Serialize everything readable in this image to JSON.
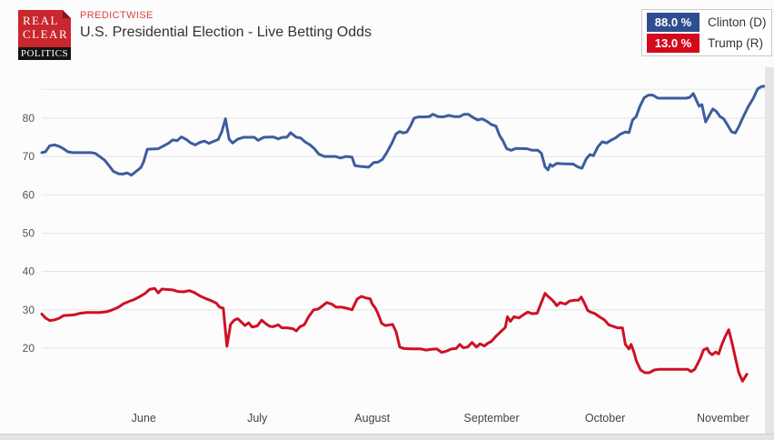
{
  "header": {
    "logo": {
      "line1": "REAL",
      "line2": "CLEAR",
      "line3": "POLITICS",
      "red": "#C9262E",
      "fold": "#7E161C",
      "black": "#141414"
    },
    "source_label": "PREDICTWISE",
    "title": "U.S. Presidential Election - Live Betting Odds"
  },
  "legend": {
    "items": [
      {
        "value": "88.0 %",
        "label": "Clinton (D)",
        "color": "#2F4E8F"
      },
      {
        "value": "13.0 %",
        "label": "Trump (R)",
        "color": "#D40A1C"
      }
    ]
  },
  "chart_data": {
    "type": "line",
    "title": "U.S. Presidential Election - Live Betting Odds",
    "source": "PREDICTWISE",
    "xlabel": "",
    "ylabel": "",
    "grid": true,
    "legend_position": "top-right",
    "ylim": [
      5.3,
      92.3
    ],
    "yticks": [
      20,
      30,
      40,
      50,
      60,
      70,
      80
    ],
    "extra_gridlines": [
      87.5
    ],
    "x_month_labels": [
      {
        "label": "June",
        "pct": 14.1
      },
      {
        "label": "July",
        "pct": 29.8
      },
      {
        "label": "August",
        "pct": 45.7
      },
      {
        "label": "September",
        "pct": 62.2
      },
      {
        "label": "October",
        "pct": 77.9
      },
      {
        "label": "November",
        "pct": 94.2
      }
    ],
    "series": [
      {
        "id": "clinton-line",
        "name": "Clinton (D)",
        "color": "#3E5C9E",
        "current_pct": 88.0,
        "points": [
          [
            0,
            71
          ],
          [
            0.5,
            71.2
          ],
          [
            1.1,
            72.8
          ],
          [
            1.8,
            73
          ],
          [
            2.4,
            72.6
          ],
          [
            3,
            72
          ],
          [
            3.6,
            71.2
          ],
          [
            4.3,
            71
          ],
          [
            6.8,
            71
          ],
          [
            7.4,
            70.8
          ],
          [
            8,
            70
          ],
          [
            8.7,
            69
          ],
          [
            9.3,
            67.6
          ],
          [
            9.9,
            66.1
          ],
          [
            10.6,
            65.5
          ],
          [
            11.2,
            65.4
          ],
          [
            11.8,
            65.7
          ],
          [
            12.4,
            65.1
          ],
          [
            13.1,
            66.2
          ],
          [
            13.7,
            67.1
          ],
          [
            14.1,
            68.7
          ],
          [
            14.6,
            71.9
          ],
          [
            16.1,
            72
          ],
          [
            16.8,
            72.7
          ],
          [
            17.5,
            73.4
          ],
          [
            18.1,
            74.3
          ],
          [
            18.7,
            74.1
          ],
          [
            19.3,
            75.1
          ],
          [
            20,
            74.4
          ],
          [
            20.6,
            73.5
          ],
          [
            21.2,
            73
          ],
          [
            21.9,
            73.7
          ],
          [
            22.5,
            74
          ],
          [
            23.1,
            73.4
          ],
          [
            23.7,
            73.9
          ],
          [
            24.4,
            74.4
          ],
          [
            24.9,
            76.5
          ],
          [
            25.4,
            79.8
          ],
          [
            25.9,
            74.5
          ],
          [
            26.4,
            73.5
          ],
          [
            27.1,
            74.5
          ],
          [
            27.9,
            75
          ],
          [
            29.4,
            75
          ],
          [
            29.9,
            74.2
          ],
          [
            30.7,
            75
          ],
          [
            32,
            75.1
          ],
          [
            32.7,
            74.6
          ],
          [
            33.3,
            75
          ],
          [
            33.9,
            75
          ],
          [
            34.4,
            76.2
          ],
          [
            35.2,
            75
          ],
          [
            35.8,
            74.8
          ],
          [
            36.4,
            73.8
          ],
          [
            37.1,
            73
          ],
          [
            37.7,
            72
          ],
          [
            38.3,
            70.6
          ],
          [
            39.1,
            70
          ],
          [
            40.6,
            70
          ],
          [
            41.3,
            69.6
          ],
          [
            42.1,
            70
          ],
          [
            42.9,
            69.8
          ],
          [
            43.3,
            67.6
          ],
          [
            44,
            67.4
          ],
          [
            45.2,
            67.2
          ],
          [
            45.9,
            68.4
          ],
          [
            46.5,
            68.5
          ],
          [
            47.1,
            69.2
          ],
          [
            47.7,
            71
          ],
          [
            48.4,
            73.4
          ],
          [
            49,
            75.9
          ],
          [
            49.5,
            76.5
          ],
          [
            50,
            76.1
          ],
          [
            50.5,
            76.4
          ],
          [
            51,
            78
          ],
          [
            51.5,
            80
          ],
          [
            52.1,
            80.3
          ],
          [
            52.9,
            80.3
          ],
          [
            53.6,
            80.4
          ],
          [
            54.1,
            81
          ],
          [
            54.8,
            80.4
          ],
          [
            55.5,
            80.3
          ],
          [
            56.3,
            80.7
          ],
          [
            57,
            80.4
          ],
          [
            57.8,
            80.4
          ],
          [
            58.4,
            81
          ],
          [
            59,
            81
          ],
          [
            59.7,
            80.1
          ],
          [
            60.3,
            79.5
          ],
          [
            60.9,
            79.8
          ],
          [
            61.6,
            79.1
          ],
          [
            62.2,
            78.3
          ],
          [
            62.8,
            77.9
          ],
          [
            63.3,
            75.5
          ],
          [
            63.8,
            74
          ],
          [
            64.3,
            72
          ],
          [
            64.9,
            71.6
          ],
          [
            65.6,
            72.1
          ],
          [
            67.1,
            72
          ],
          [
            67.8,
            71.6
          ],
          [
            68.6,
            71.6
          ],
          [
            69.1,
            70.8
          ],
          [
            69.6,
            67.3
          ],
          [
            70,
            66.5
          ],
          [
            70.3,
            67.9
          ],
          [
            70.6,
            67.4
          ],
          [
            71.2,
            68.2
          ],
          [
            72,
            68.1
          ],
          [
            73.5,
            68
          ],
          [
            74.1,
            67.3
          ],
          [
            74.7,
            66.9
          ],
          [
            75.3,
            69.4
          ],
          [
            75.8,
            70.5
          ],
          [
            76.3,
            70.2
          ],
          [
            76.9,
            72.5
          ],
          [
            77.5,
            73.8
          ],
          [
            78.1,
            73.5
          ],
          [
            78.8,
            74.3
          ],
          [
            79.4,
            74.9
          ],
          [
            80,
            75.8
          ],
          [
            80.7,
            76.4
          ],
          [
            81.2,
            76.2
          ],
          [
            81.7,
            79.5
          ],
          [
            82.2,
            80.4
          ],
          [
            82.7,
            83
          ],
          [
            83.3,
            85.3
          ],
          [
            83.9,
            86
          ],
          [
            84.5,
            86
          ],
          [
            85.2,
            85.2
          ],
          [
            89.1,
            85.2
          ],
          [
            89.6,
            85.4
          ],
          [
            90.1,
            86.4
          ],
          [
            90.6,
            84.3
          ],
          [
            90.9,
            83.1
          ],
          [
            91.3,
            83.5
          ],
          [
            91.8,
            79
          ],
          [
            92.3,
            80.7
          ],
          [
            92.8,
            82.4
          ],
          [
            93.3,
            81.7
          ],
          [
            93.8,
            80.4
          ],
          [
            94.3,
            79.8
          ],
          [
            94.8,
            78.3
          ],
          [
            95.4,
            76.4
          ],
          [
            95.9,
            76.1
          ],
          [
            96.4,
            77.8
          ],
          [
            97,
            80.3
          ],
          [
            97.7,
            83
          ],
          [
            98.4,
            85.2
          ],
          [
            99,
            87.6
          ],
          [
            99.5,
            88.2
          ],
          [
            99.9,
            88.3
          ]
        ]
      },
      {
        "id": "trump-line",
        "name": "Trump (R)",
        "color": "#CE1124",
        "current_pct": 13.0,
        "points": [
          [
            0,
            28.9
          ],
          [
            0.5,
            27.9
          ],
          [
            1.1,
            27.2
          ],
          [
            1.8,
            27.4
          ],
          [
            2.4,
            27.8
          ],
          [
            3,
            28.5
          ],
          [
            3.8,
            28.6
          ],
          [
            4.5,
            28.7
          ],
          [
            5.3,
            29.1
          ],
          [
            6.2,
            29.3
          ],
          [
            8,
            29.3
          ],
          [
            9,
            29.5
          ],
          [
            9.9,
            30.1
          ],
          [
            10.6,
            30.7
          ],
          [
            11.3,
            31.6
          ],
          [
            12.1,
            32.2
          ],
          [
            12.8,
            32.7
          ],
          [
            13.6,
            33.5
          ],
          [
            14.3,
            34.3
          ],
          [
            14.9,
            35.3
          ],
          [
            15.6,
            35.6
          ],
          [
            16.1,
            34.4
          ],
          [
            16.6,
            35.4
          ],
          [
            17.3,
            35.3
          ],
          [
            18.1,
            35.2
          ],
          [
            18.8,
            34.8
          ],
          [
            19.6,
            34.7
          ],
          [
            20.4,
            35
          ],
          [
            21.1,
            34.5
          ],
          [
            21.9,
            33.6
          ],
          [
            22.6,
            33
          ],
          [
            23.4,
            32.4
          ],
          [
            24.1,
            31.8
          ],
          [
            24.6,
            30.7
          ],
          [
            25.1,
            30.4
          ],
          [
            25.6,
            20.5
          ],
          [
            26.1,
            26.2
          ],
          [
            26.6,
            27.3
          ],
          [
            27.1,
            27.7
          ],
          [
            27.6,
            26.8
          ],
          [
            28.1,
            25.9
          ],
          [
            28.6,
            26.6
          ],
          [
            29.1,
            25.5
          ],
          [
            29.8,
            25.8
          ],
          [
            30.4,
            27.3
          ],
          [
            30.9,
            26.5
          ],
          [
            31.5,
            25.7
          ],
          [
            32,
            25.6
          ],
          [
            32.7,
            26.1
          ],
          [
            33.2,
            25.3
          ],
          [
            33.9,
            25.3
          ],
          [
            34.7,
            25.1
          ],
          [
            35.2,
            24.5
          ],
          [
            35.7,
            25.6
          ],
          [
            36.3,
            26.1
          ],
          [
            36.9,
            28.2
          ],
          [
            37.6,
            30
          ],
          [
            38.2,
            30.2
          ],
          [
            38.8,
            31
          ],
          [
            39.4,
            31.9
          ],
          [
            40.1,
            31.5
          ],
          [
            40.7,
            30.7
          ],
          [
            41.5,
            30.7
          ],
          [
            42.2,
            30.4
          ],
          [
            42.9,
            30
          ],
          [
            43.6,
            32.8
          ],
          [
            44.2,
            33.5
          ],
          [
            44.8,
            33.1
          ],
          [
            45.4,
            32.9
          ],
          [
            45.7,
            31.5
          ],
          [
            46.1,
            30.5
          ],
          [
            46.5,
            29
          ],
          [
            47,
            26.5
          ],
          [
            47.5,
            25.9
          ],
          [
            48.5,
            26.2
          ],
          [
            49,
            24.3
          ],
          [
            49.5,
            20.3
          ],
          [
            50.1,
            19.9
          ],
          [
            51,
            19.8
          ],
          [
            52.4,
            19.8
          ],
          [
            53.1,
            19.5
          ],
          [
            53.9,
            19.7
          ],
          [
            54.6,
            19.8
          ],
          [
            55.3,
            18.9
          ],
          [
            55.9,
            19.2
          ],
          [
            56.7,
            19.8
          ],
          [
            57.3,
            19.9
          ],
          [
            57.8,
            21
          ],
          [
            58.3,
            20.1
          ],
          [
            58.9,
            20.3
          ],
          [
            59.5,
            21.5
          ],
          [
            60.1,
            20.3
          ],
          [
            60.6,
            21.1
          ],
          [
            61.2,
            20.6
          ],
          [
            61.7,
            21.3
          ],
          [
            62.2,
            21.8
          ],
          [
            62.8,
            23.1
          ],
          [
            63.4,
            24.2
          ],
          [
            64.1,
            25.4
          ],
          [
            64.4,
            28.2
          ],
          [
            64.8,
            27
          ],
          [
            65.3,
            28.2
          ],
          [
            66,
            27.9
          ],
          [
            66.6,
            28.7
          ],
          [
            67.2,
            29.4
          ],
          [
            67.8,
            29
          ],
          [
            68.5,
            29.1
          ],
          [
            69,
            31.5
          ],
          [
            69.6,
            34.3
          ],
          [
            70,
            33.5
          ],
          [
            70.5,
            32.7
          ],
          [
            70.9,
            31.9
          ],
          [
            71.2,
            31.1
          ],
          [
            71.7,
            31.9
          ],
          [
            72.4,
            31.5
          ],
          [
            73,
            32.3
          ],
          [
            73.6,
            32.5
          ],
          [
            74.2,
            32.5
          ],
          [
            74.6,
            33.3
          ],
          [
            75,
            31.9
          ],
          [
            75.5,
            29.8
          ],
          [
            75.9,
            29.4
          ],
          [
            76.5,
            29
          ],
          [
            77.1,
            28.2
          ],
          [
            77.8,
            27.4
          ],
          [
            78.4,
            26.1
          ],
          [
            79,
            25.7
          ],
          [
            79.6,
            25.3
          ],
          [
            80.3,
            25.3
          ],
          [
            80.7,
            21
          ],
          [
            81.2,
            19.8
          ],
          [
            81.5,
            21
          ],
          [
            81.9,
            18.9
          ],
          [
            82.2,
            16.8
          ],
          [
            82.8,
            14.3
          ],
          [
            83.4,
            13.6
          ],
          [
            84,
            13.6
          ],
          [
            84.7,
            14.3
          ],
          [
            85.4,
            14.5
          ],
          [
            89.3,
            14.5
          ],
          [
            89.8,
            13.9
          ],
          [
            90.3,
            14.5
          ],
          [
            90.7,
            16
          ],
          [
            91.1,
            17.5
          ],
          [
            91.5,
            19.5
          ],
          [
            92,
            20
          ],
          [
            92.3,
            18.9
          ],
          [
            92.7,
            18.3
          ],
          [
            93.2,
            19
          ],
          [
            93.6,
            18.5
          ],
          [
            94,
            20.7
          ],
          [
            94.5,
            23
          ],
          [
            95,
            24.8
          ],
          [
            95.5,
            21
          ],
          [
            96,
            16.7
          ],
          [
            96.4,
            13.6
          ],
          [
            96.9,
            11.4
          ],
          [
            97.5,
            13.2
          ]
        ]
      }
    ]
  }
}
